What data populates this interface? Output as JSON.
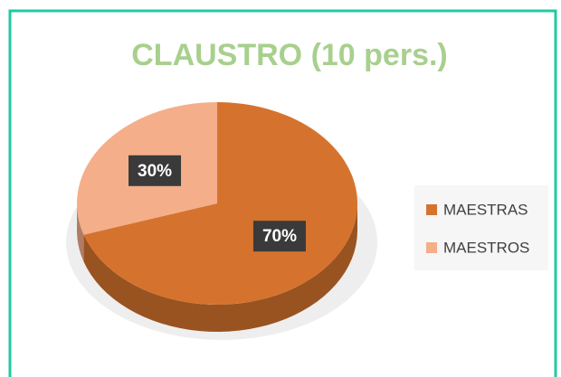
{
  "chart_data": {
    "type": "pie",
    "title": "CLAUSTRO (10 pers.)",
    "categories": [
      "MAESTRAS",
      "MAESTROS"
    ],
    "values": [
      70,
      30
    ],
    "value_labels": [
      "70%",
      "30%"
    ],
    "colors": [
      "#d5732e",
      "#f4ae8a"
    ],
    "legend": "right"
  }
}
